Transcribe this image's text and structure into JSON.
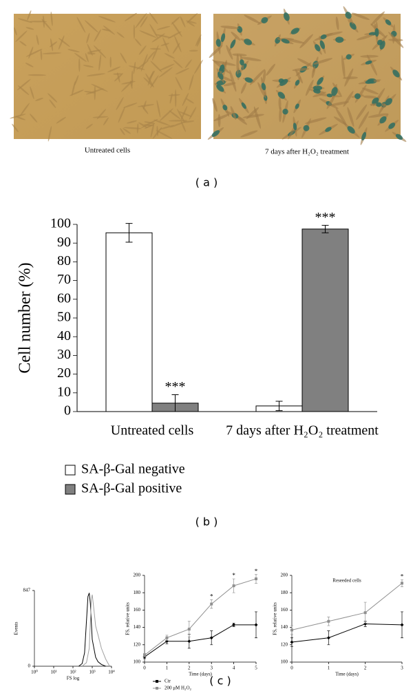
{
  "panel_a": {
    "images": [
      {
        "caption": "Untreated cells"
      },
      {
        "caption": "7 days after H₂O₂ treatment"
      }
    ],
    "label": "( a )"
  },
  "panel_b": {
    "label": "( b )"
  },
  "panel_c": {
    "label": "( c )"
  },
  "chart_data": [
    {
      "type": "bar",
      "categories": [
        "Untreated cells",
        "7 days after H₂O₂ treatment"
      ],
      "series": [
        {
          "name": "SA-β-Gal negative",
          "color": "#ffffff",
          "values": [
            95.5,
            3
          ],
          "errors": [
            5,
            2.5
          ],
          "annotations": [
            null,
            null
          ]
        },
        {
          "name": "SA-β-Gal positive",
          "color": "#808080",
          "values": [
            4.5,
            97.5
          ],
          "errors": [
            4.5,
            2
          ],
          "annotations": [
            "***",
            "***"
          ]
        }
      ],
      "ylabel": "Cell number (%)",
      "ylim": [
        0,
        100
      ],
      "yticks": [
        0,
        10,
        20,
        30,
        40,
        50,
        60,
        70,
        80,
        90,
        100
      ],
      "legend": "below"
    },
    {
      "type": "line",
      "xlabel": "FS log",
      "ylabel": "Events",
      "xscale": "log",
      "xlim": [
        1,
        10000
      ],
      "xticks": [
        {
          "value": 1,
          "label": "10⁰"
        },
        {
          "value": 10,
          "label": "10¹"
        },
        {
          "value": 100,
          "label": "10²"
        },
        {
          "value": 1000,
          "label": "10³"
        },
        {
          "value": 10000,
          "label": "10⁴"
        }
      ],
      "ylim": [
        0,
        847
      ],
      "yticks": [
        0,
        847
      ],
      "series": [
        {
          "color": "#000000",
          "x": [
            200,
            300,
            400,
            500,
            600,
            700,
            800,
            1000,
            1500,
            2000,
            3000,
            5000
          ],
          "values": [
            0,
            30,
            150,
            500,
            780,
            820,
            700,
            300,
            100,
            50,
            20,
            0
          ]
        },
        {
          "color": "#a0a0a0",
          "x": [
            300,
            500,
            700,
            800,
            900,
            1000,
            1200,
            1500,
            2000,
            3000,
            5000,
            8000
          ],
          "values": [
            0,
            40,
            200,
            500,
            750,
            800,
            650,
            450,
            350,
            200,
            80,
            0
          ]
        }
      ]
    },
    {
      "type": "line",
      "xlabel": "Time (days)",
      "ylabel": "FS, relative units",
      "xlim": [
        0,
        5
      ],
      "xticks": [
        0,
        1,
        2,
        3,
        4,
        5
      ],
      "ylim": [
        100,
        200
      ],
      "yticks": [
        100,
        120,
        140,
        160,
        180,
        200
      ],
      "legend": "below",
      "series": [
        {
          "name": "Ctr",
          "color": "#000000",
          "marker": "diamond",
          "x": [
            0,
            1,
            2,
            3,
            4,
            5
          ],
          "values": [
            106,
            124,
            124,
            128,
            143,
            143
          ],
          "errors": [
            2,
            3,
            8,
            8,
            2,
            15
          ],
          "annotations": [
            null,
            null,
            null,
            null,
            null,
            null
          ]
        },
        {
          "name": "200 μM H₂O₂",
          "color": "#909090",
          "marker": "square",
          "x": [
            0,
            1,
            2,
            3,
            4,
            5
          ],
          "values": [
            108,
            128,
            138,
            167,
            188,
            196
          ],
          "errors": [
            2,
            3,
            9,
            5,
            8,
            5
          ],
          "annotations": [
            null,
            null,
            null,
            "*",
            "*",
            "*"
          ]
        }
      ]
    },
    {
      "type": "line",
      "title": "Reseeded cells",
      "xlabel": "Time (days)",
      "ylabel": "FS, relative units",
      "xlim": [
        0,
        3
      ],
      "xticks": [
        0,
        1,
        2,
        3
      ],
      "ylim": [
        100,
        200
      ],
      "yticks": [
        100,
        120,
        140,
        160,
        180,
        200
      ],
      "series": [
        {
          "color": "#000000",
          "marker": "diamond",
          "x": [
            0,
            1,
            2,
            3
          ],
          "values": [
            123,
            128,
            144,
            143
          ],
          "errors": [
            5,
            8,
            3,
            15
          ],
          "annotations": [
            null,
            null,
            null,
            null
          ]
        },
        {
          "color": "#909090",
          "marker": "square",
          "x": [
            0,
            1,
            2,
            3
          ],
          "values": [
            137,
            147,
            157,
            191
          ],
          "errors": [
            5,
            5,
            12,
            4
          ],
          "annotations": [
            null,
            null,
            null,
            "*"
          ]
        }
      ]
    }
  ]
}
